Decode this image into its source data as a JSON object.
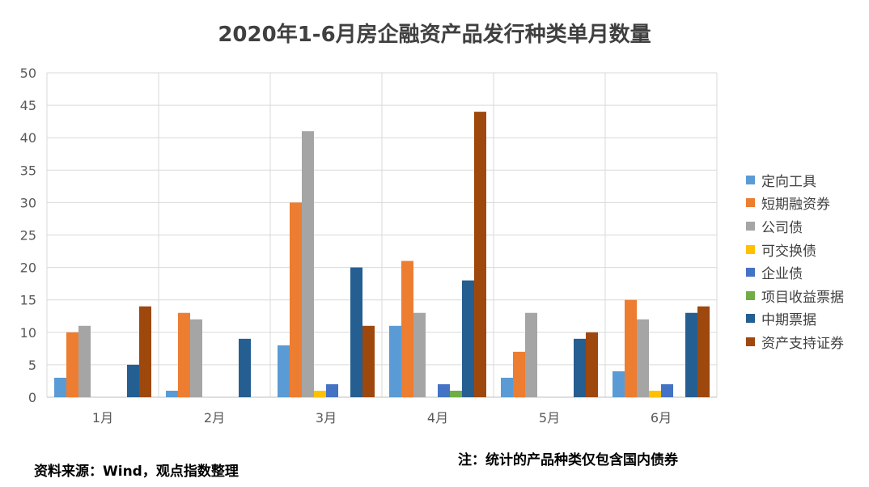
{
  "chart_data": {
    "type": "bar",
    "title": "2020年1-6月房企融资产品发行种类单月数量",
    "categories": [
      "1月",
      "2月",
      "3月",
      "4月",
      "5月",
      "6月"
    ],
    "ylim": [
      0,
      50
    ],
    "yticks": [
      0,
      5,
      10,
      15,
      20,
      25,
      30,
      35,
      40,
      45,
      50
    ],
    "grid": true,
    "legend_position": "right",
    "series": [
      {
        "name": "定向工具",
        "color": "#5b9bd5",
        "values": [
          3,
          1,
          8,
          11,
          3,
          4
        ]
      },
      {
        "name": "短期融资券",
        "color": "#ed7d31",
        "values": [
          10,
          13,
          30,
          21,
          7,
          15
        ]
      },
      {
        "name": "公司债",
        "color": "#a5a5a5",
        "values": [
          11,
          12,
          41,
          13,
          13,
          12
        ]
      },
      {
        "name": "可交换债",
        "color": "#ffc000",
        "values": [
          0,
          0,
          1,
          0,
          0,
          1
        ]
      },
      {
        "name": "企业债",
        "color": "#4472c4",
        "values": [
          0,
          0,
          2,
          2,
          0,
          2
        ]
      },
      {
        "name": "项目收益票据",
        "color": "#70ad47",
        "values": [
          0,
          0,
          0,
          1,
          0,
          0
        ]
      },
      {
        "name": "中期票据",
        "color": "#255e91",
        "values": [
          5,
          9,
          20,
          18,
          9,
          13
        ]
      },
      {
        "name": "资产支持证券",
        "color": "#9e480e",
        "values": [
          14,
          0,
          11,
          44,
          10,
          14
        ]
      }
    ]
  },
  "footer": {
    "source": "资料来源：Wind，观点指数整理",
    "note": "注：统计的产品种类仅包含国内债券"
  }
}
